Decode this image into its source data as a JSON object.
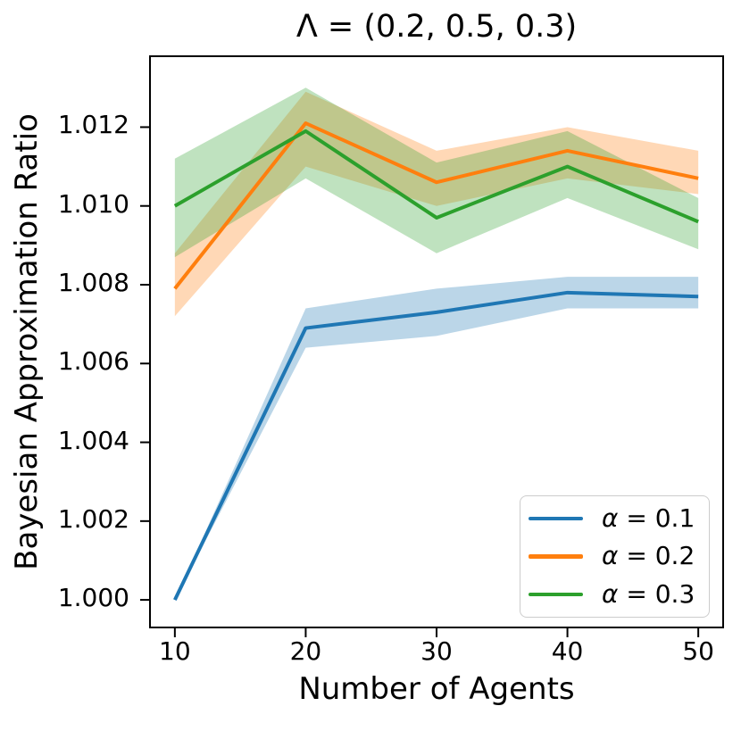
{
  "figure": {
    "background": "#ffffff"
  },
  "chart_data": {
    "type": "line",
    "title": "Λ = (0.2, 0.5, 0.3)",
    "xlabel": "Number of Agents",
    "ylabel": "Bayesian Approximation Ratio",
    "x": [
      10,
      20,
      30,
      40,
      50
    ],
    "x_tick_labels": [
      "10",
      "20",
      "30",
      "40",
      "50"
    ],
    "y_tick_values": [
      1.0,
      1.002,
      1.004,
      1.006,
      1.008,
      1.01,
      1.012
    ],
    "y_tick_labels": [
      "1.000",
      "1.002",
      "1.004",
      "1.006",
      "1.008",
      "1.010",
      "1.012"
    ],
    "xlim": [
      8.1,
      51.9
    ],
    "ylim": [
      0.9993,
      1.0138
    ],
    "grid": false,
    "legend": {
      "position": "lower right"
    },
    "band_opacity": 0.3,
    "axis_color": "#000000",
    "series": [
      {
        "name": "alpha-0.1",
        "label": "α = 0.1",
        "color": "#1f77b4",
        "mean": [
          1.0,
          1.0069,
          1.0073,
          1.0078,
          1.0077
        ],
        "band_low": [
          1.0,
          1.0064,
          1.0067,
          1.0074,
          1.0074
        ],
        "band_high": [
          1.0,
          1.0074,
          1.0079,
          1.0082,
          1.0082
        ]
      },
      {
        "name": "alpha-0.2",
        "label": "α = 0.2",
        "color": "#ff7f0e",
        "mean": [
          1.0079,
          1.0121,
          1.0106,
          1.0114,
          1.0107
        ],
        "band_low": [
          1.0072,
          1.011,
          1.01,
          1.0107,
          1.0103
        ],
        "band_high": [
          1.0088,
          1.0129,
          1.0114,
          1.012,
          1.0114
        ]
      },
      {
        "name": "alpha-0.3",
        "label": "α = 0.3",
        "color": "#2ca02c",
        "mean": [
          1.01,
          1.0119,
          1.0097,
          1.011,
          1.0096
        ],
        "band_low": [
          1.0087,
          1.0107,
          1.0088,
          1.0102,
          1.0089
        ],
        "band_high": [
          1.0112,
          1.013,
          1.0111,
          1.0119,
          1.0102
        ]
      }
    ]
  }
}
